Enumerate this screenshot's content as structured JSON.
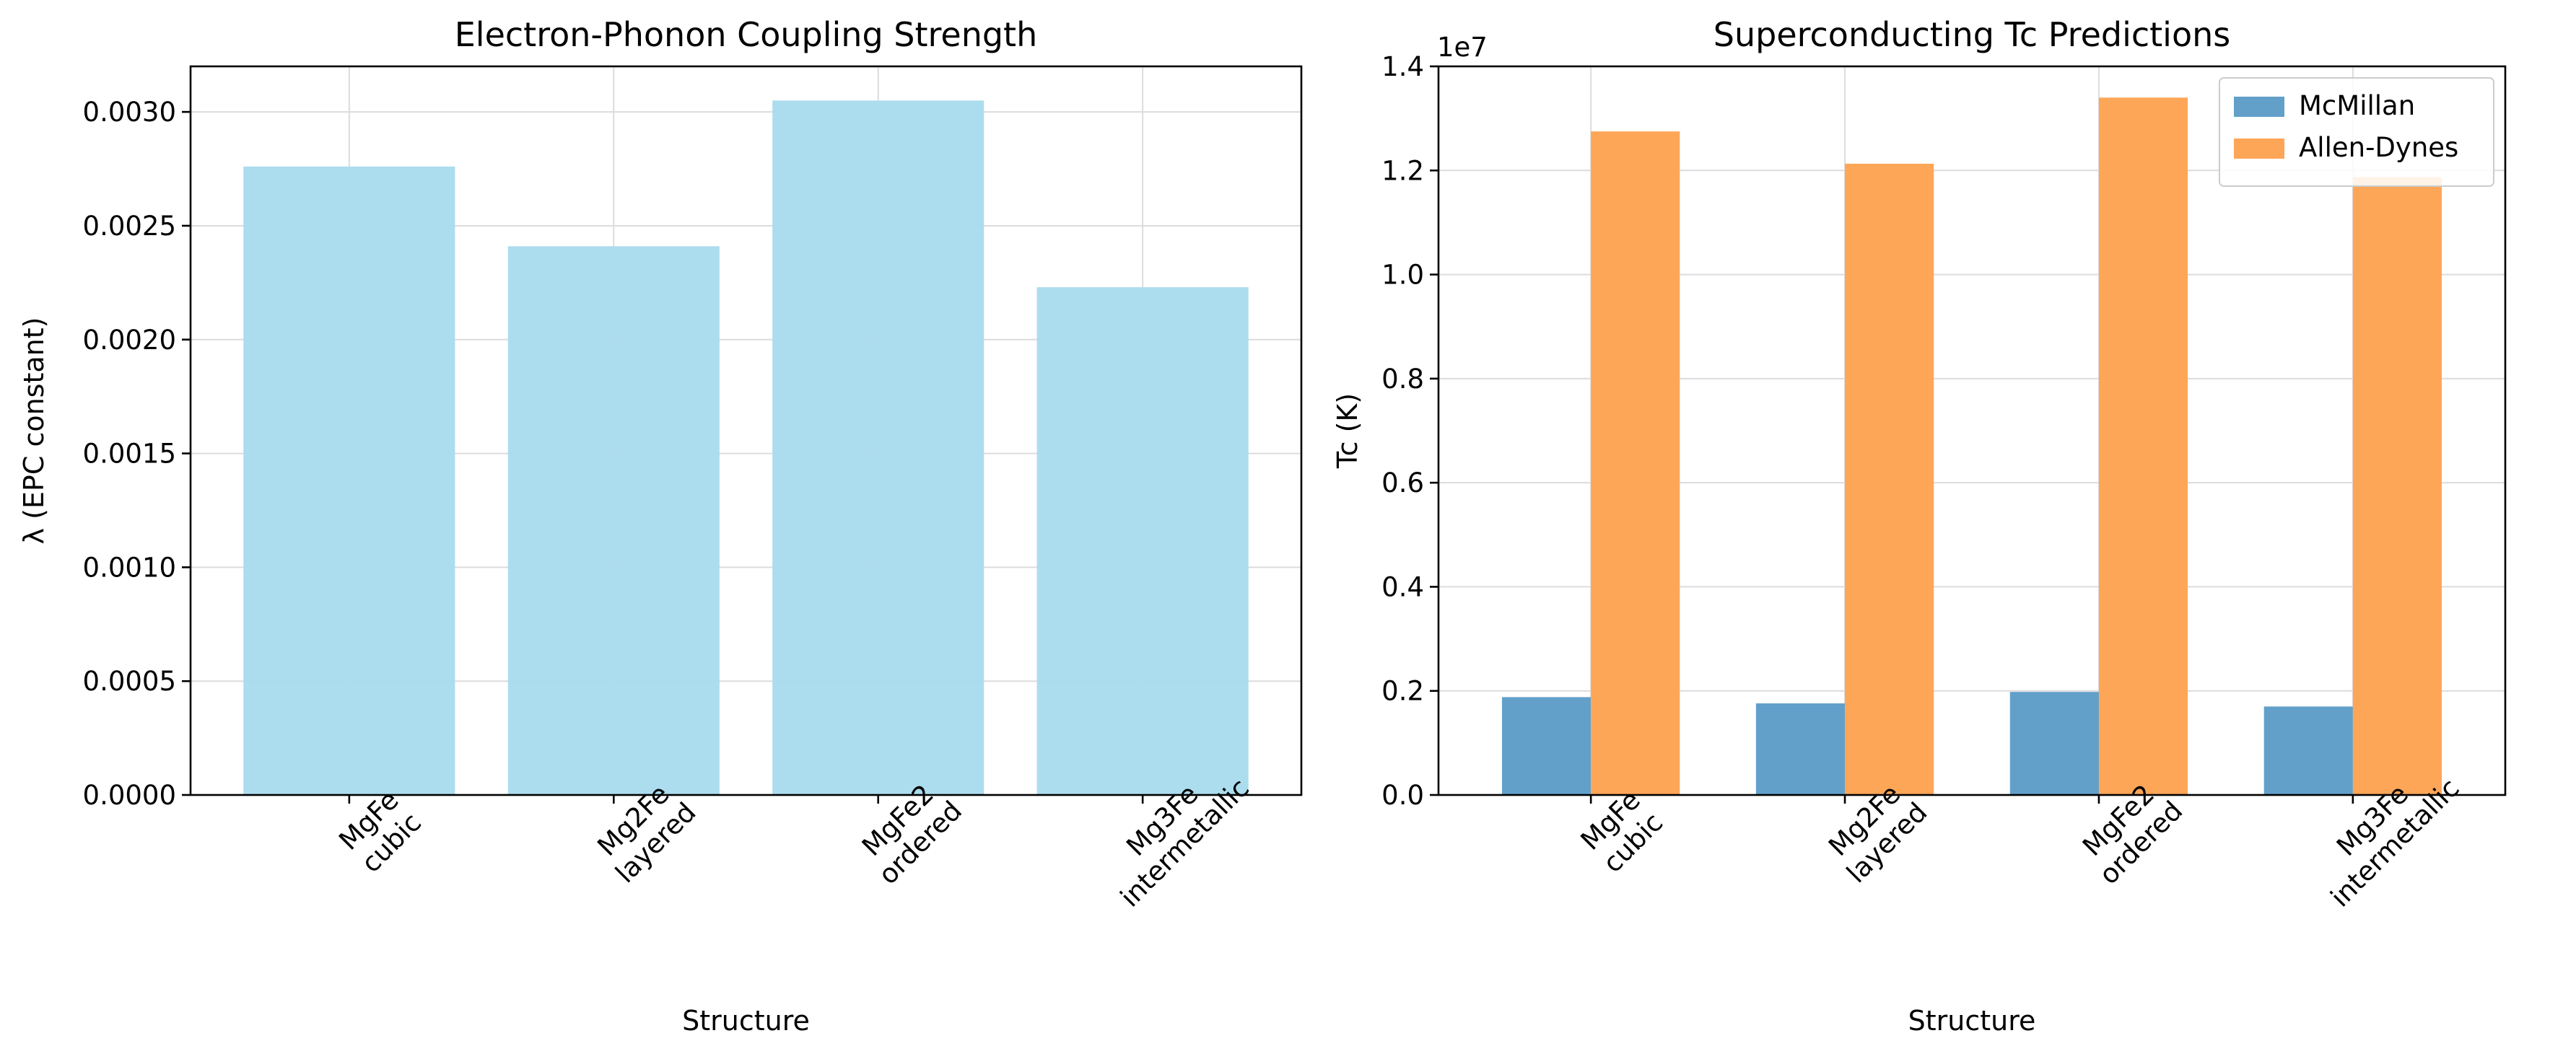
{
  "chart_data": [
    {
      "type": "bar",
      "title": "Electron-Phonon Coupling Strength",
      "xlabel": "Structure",
      "ylabel": "λ (EPC constant)",
      "categories": [
        "MgFe\ncubic",
        "Mg2Fe\nlayered",
        "MgFe2\nordered",
        "Mg3Fe\nintermetallic"
      ],
      "values": [
        0.00276,
        0.00241,
        0.00305,
        0.00223
      ],
      "ylim": [
        0,
        0.0032
      ],
      "yticks": [
        0,
        0.0005,
        0.001,
        0.0015,
        0.002,
        0.0025,
        0.003
      ],
      "ytick_labels": [
        "0.0000",
        "0.0005",
        "0.0010",
        "0.0015",
        "0.0020",
        "0.0025",
        "0.0030"
      ],
      "color": "#a8dbed",
      "grid": true
    },
    {
      "type": "bar",
      "title": "Superconducting Tc Predictions",
      "xlabel": "Structure",
      "ylabel": "Tc (K)",
      "categories": [
        "MgFe\ncubic",
        "Mg2Fe\nlayered",
        "MgFe2\nordered",
        "Mg3Fe\nintermetallic"
      ],
      "series": [
        {
          "name": "McMillan",
          "values": [
            1880000,
            1760000,
            1980000,
            1700000
          ],
          "color": "#62a0ca"
        },
        {
          "name": "Allen-Dynes",
          "values": [
            12750000,
            12130000,
            13400000,
            11870000
          ],
          "color": "#fea658"
        }
      ],
      "ylim": [
        0,
        14000000
      ],
      "yticks": [
        0,
        2000000,
        4000000,
        6000000,
        8000000,
        10000000,
        12000000,
        14000000
      ],
      "ytick_labels": [
        "0.0",
        "0.2",
        "0.4",
        "0.6",
        "0.8",
        "1.0",
        "1.2",
        "1.4"
      ],
      "offset_text": "1e7",
      "legend_position": "top-right",
      "grid": true
    }
  ]
}
